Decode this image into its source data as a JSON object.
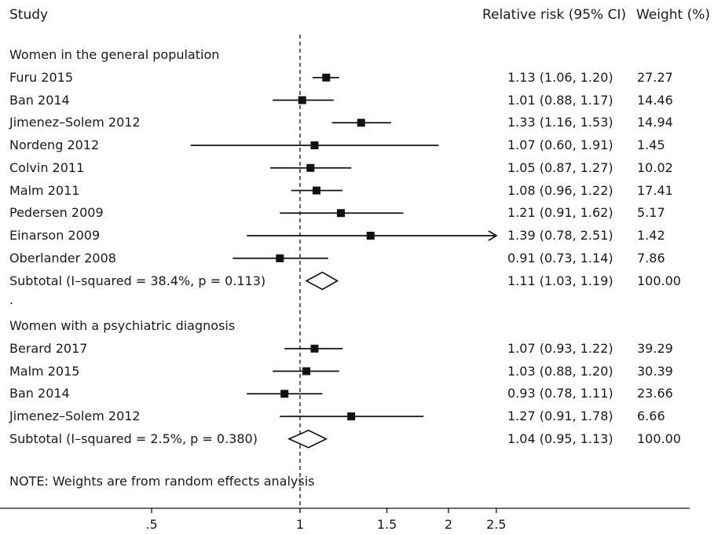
{
  "chart_data": {
    "type": "forest",
    "x_scale": "log",
    "null_value": 1,
    "headers": {
      "study": "Study",
      "effect": "Relative risk (95% CI)",
      "weight": "Weight (%)"
    },
    "xticks": [
      {
        "value": 0.5,
        "label": ".5"
      },
      {
        "value": 1,
        "label": "1"
      },
      {
        "value": 1.5,
        "label": "1.5"
      },
      {
        "value": 2,
        "label": "2"
      },
      {
        "value": 2.5,
        "label": "2.5"
      }
    ],
    "x_display_max": 2.51,
    "groups": [
      {
        "title": "Women in the general population",
        "studies": [
          {
            "label": "Furu 2015",
            "rr": 1.13,
            "lo": 1.06,
            "hi": 1.2,
            "ci_text": "1.13 (1.06, 1.20)",
            "weight": "27.27"
          },
          {
            "label": "Ban 2014",
            "rr": 1.01,
            "lo": 0.88,
            "hi": 1.17,
            "ci_text": "1.01 (0.88, 1.17)",
            "weight": "14.46"
          },
          {
            "label": "Jimenez–Solem 2012",
            "rr": 1.33,
            "lo": 1.16,
            "hi": 1.53,
            "ci_text": "1.33 (1.16, 1.53)",
            "weight": "14.94"
          },
          {
            "label": "Nordeng 2012",
            "rr": 1.07,
            "lo": 0.6,
            "hi": 1.91,
            "ci_text": "1.07 (0.60, 1.91)",
            "weight": "1.45"
          },
          {
            "label": "Colvin 2011",
            "rr": 1.05,
            "lo": 0.87,
            "hi": 1.27,
            "ci_text": "1.05 (0.87, 1.27)",
            "weight": "10.02"
          },
          {
            "label": "Malm 2011",
            "rr": 1.08,
            "lo": 0.96,
            "hi": 1.22,
            "ci_text": "1.08 (0.96, 1.22)",
            "weight": "17.41"
          },
          {
            "label": "Pedersen 2009",
            "rr": 1.21,
            "lo": 0.91,
            "hi": 1.62,
            "ci_text": "1.21 (0.91, 1.62)",
            "weight": "5.17"
          },
          {
            "label": "Einarson 2009",
            "rr": 1.39,
            "lo": 0.78,
            "hi": 2.51,
            "ci_text": "1.39 (0.78, 2.51)",
            "weight": "1.42"
          },
          {
            "label": "Oberlander 2008",
            "rr": 0.91,
            "lo": 0.73,
            "hi": 1.14,
            "ci_text": "0.91 (0.73, 1.14)",
            "weight": "7.86"
          }
        ],
        "subtotal": {
          "label": "Subtotal  (I–squared = 38.4%, p = 0.113)",
          "rr": 1.11,
          "lo": 1.03,
          "hi": 1.19,
          "ci_text": "1.11 (1.03, 1.19)",
          "weight": "100.00"
        }
      },
      {
        "title": "Women with a psychiatric diagnosis",
        "studies": [
          {
            "label": "Berard 2017",
            "rr": 1.07,
            "lo": 0.93,
            "hi": 1.22,
            "ci_text": "1.07 (0.93, 1.22)",
            "weight": "39.29"
          },
          {
            "label": "Malm 2015",
            "rr": 1.03,
            "lo": 0.88,
            "hi": 1.2,
            "ci_text": "1.03 (0.88, 1.20)",
            "weight": "30.39"
          },
          {
            "label": "Ban 2014",
            "rr": 0.93,
            "lo": 0.78,
            "hi": 1.11,
            "ci_text": "0.93 (0.78, 1.11)",
            "weight": "23.66"
          },
          {
            "label": "Jimenez–Solem 2012",
            "rr": 1.27,
            "lo": 0.91,
            "hi": 1.78,
            "ci_text": "1.27 (0.91, 1.78)",
            "weight": "6.66"
          }
        ],
        "subtotal": {
          "label": "Subtotal  (I–squared = 2.5%, p = 0.380)",
          "rr": 1.04,
          "lo": 0.95,
          "hi": 1.13,
          "ci_text": "1.04 (0.95, 1.13)",
          "weight": "100.00"
        }
      }
    ],
    "separator": ".",
    "note": "NOTE: Weights are from random effects analysis"
  }
}
